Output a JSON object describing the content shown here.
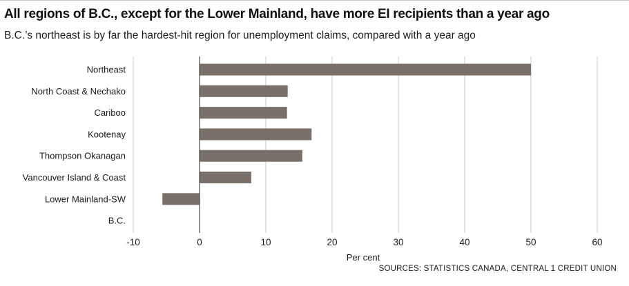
{
  "title": "All regions of B.C., except for the Lower Mainland, have more EI recipients than a year ago",
  "subtitle": "B.C.’s northeast is by far the hardest-hit region for unemployment claims, compared with a year ago",
  "source": "SOURCES:  STATISTICS CANADA, CENTRAL 1 CREDIT UNION",
  "colors": {
    "bar": "#787069",
    "grid": "#c9c9c9",
    "zero_line": "#4a4a4a"
  },
  "chart_data": {
    "type": "bar",
    "orientation": "horizontal",
    "categories": [
      "Northeast",
      "North Coast & Nechako",
      "Cariboo",
      "Kootenay",
      "Thompson Okanagan",
      "Vancouver Island & Coast",
      "Lower Mainland-SW",
      "B.C."
    ],
    "values": [
      50,
      13.3,
      13.2,
      16.9,
      15.5,
      7.8,
      -5.6,
      null
    ],
    "xlabel": "Per cent",
    "ylabel": "",
    "xlim": [
      -10,
      60
    ],
    "xticks": [
      -10,
      0,
      10,
      20,
      30,
      40,
      50,
      60
    ],
    "grid": true,
    "legend": "none"
  }
}
